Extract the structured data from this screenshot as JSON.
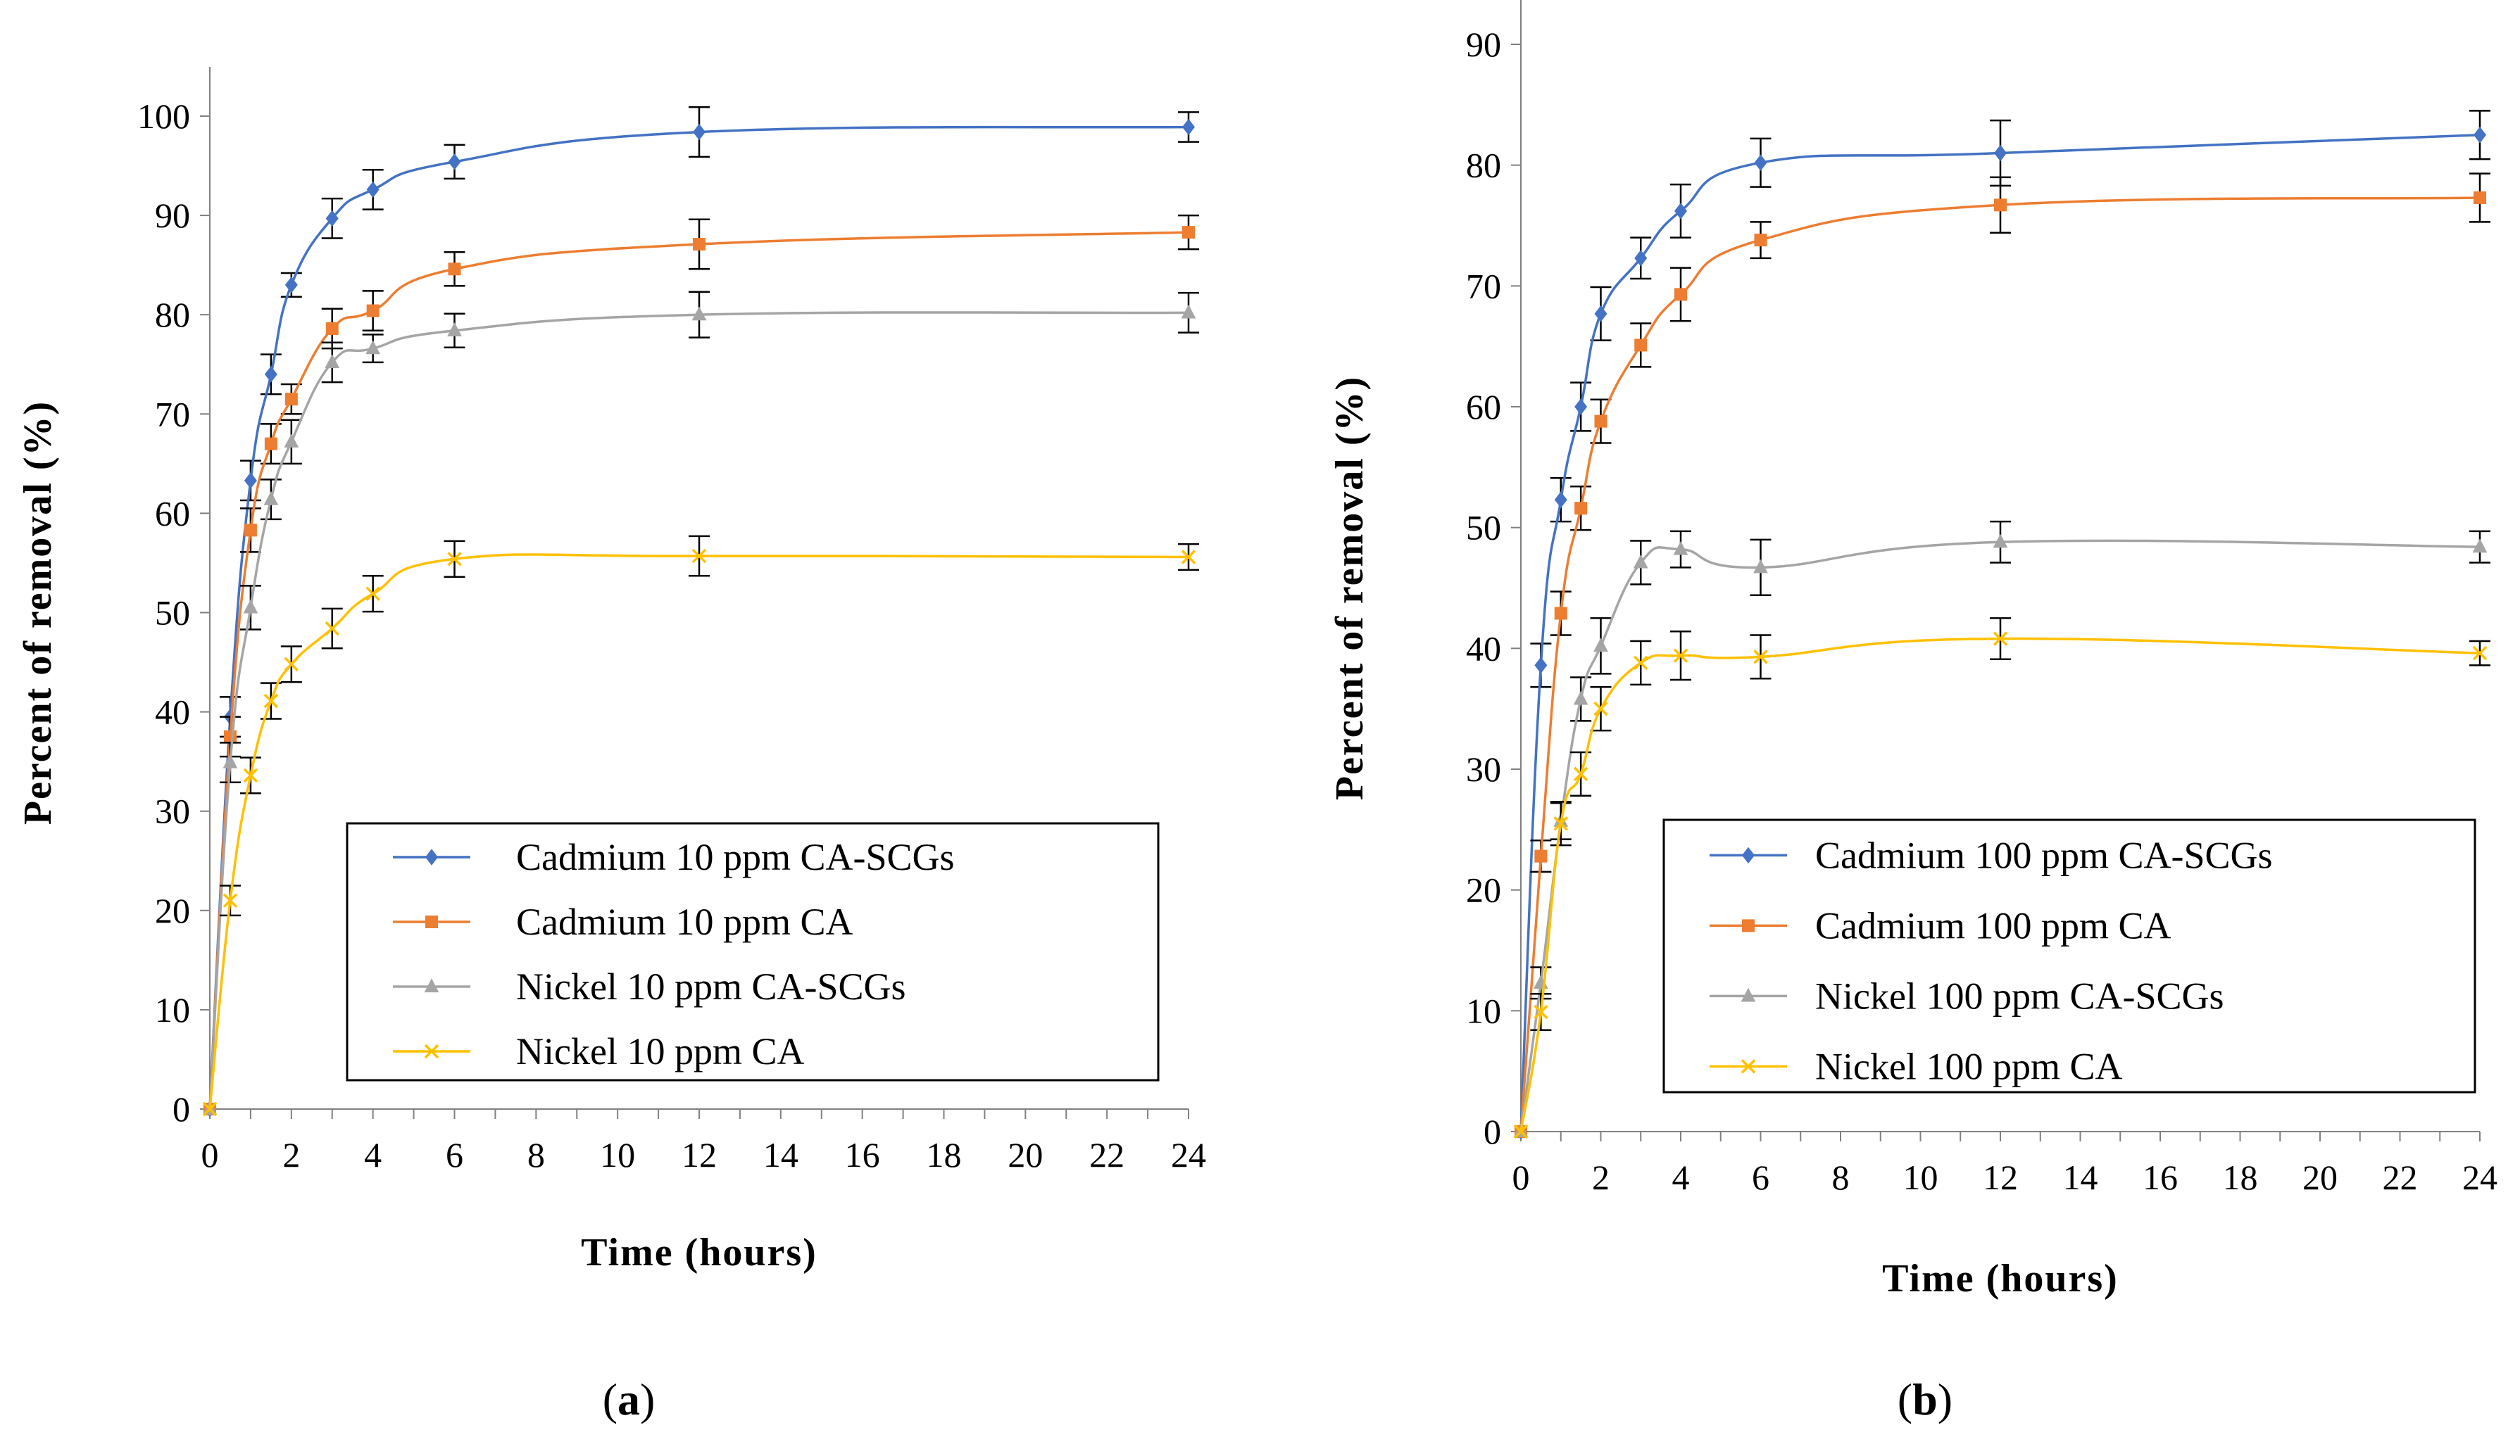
{
  "colors": {
    "cd_scg": "#4472C4",
    "cd_ca": "#ED7D31",
    "ni_scg": "#A5A5A5",
    "ni_ca": "#FFC000",
    "axis": "#808080",
    "errorbar": "#000000"
  },
  "chart_data": [
    {
      "type": "line",
      "panel": "a",
      "panel_label_open": "(",
      "panel_label_letter": "a",
      "panel_label_close": ")",
      "xlabel": "Time  (hours)",
      "ylabel": "Percent  of  removal  (%)",
      "xlim": [
        0,
        24
      ],
      "ylim": [
        0,
        100
      ],
      "xticks": [
        0,
        2,
        4,
        6,
        8,
        10,
        12,
        14,
        16,
        18,
        20,
        22,
        24
      ],
      "yticks": [
        0,
        10,
        20,
        30,
        40,
        50,
        60,
        70,
        80,
        90,
        100
      ],
      "grid": false,
      "legend_position": "bottom-right",
      "x": [
        0,
        0.5,
        1,
        1.5,
        2,
        3,
        4,
        6,
        12,
        24
      ],
      "series": [
        {
          "name": "Cadmium 10 ppm CA-SCGs",
          "marker": "diamond",
          "color_key": "cd_scg",
          "values": [
            0,
            39.5,
            63.3,
            74,
            83,
            89.7,
            92.6,
            95.4,
            98.4,
            98.9
          ],
          "errors": [
            0,
            2,
            2,
            2,
            1.2,
            2,
            2,
            1.7,
            2.5,
            1.5
          ]
        },
        {
          "name": "Cadmium 10 ppm CA",
          "marker": "square",
          "color_key": "cd_ca",
          "values": [
            0,
            37.5,
            58.3,
            67,
            71.5,
            78.6,
            80.4,
            84.6,
            87.1,
            88.3
          ],
          "errors": [
            0,
            2,
            2.2,
            2,
            1.5,
            2,
            2,
            1.7,
            2.5,
            1.7
          ]
        },
        {
          "name": "Nickel 10 ppm CA-SCGs",
          "marker": "triangle",
          "color_key": "ni_scg",
          "values": [
            0,
            34.9,
            50.5,
            61.4,
            67.2,
            75.2,
            76.6,
            78.4,
            80,
            80.2
          ],
          "errors": [
            0,
            2,
            2.2,
            2,
            2.2,
            2,
            1.4,
            1.7,
            2.3,
            2
          ]
        },
        {
          "name": "Nickel 10 ppm CA",
          "marker": "x",
          "color_key": "ni_ca",
          "values": [
            0,
            21,
            33.6,
            41.1,
            44.8,
            48.4,
            51.9,
            55.4,
            55.7,
            55.6
          ],
          "errors": [
            0,
            1.5,
            1.8,
            1.8,
            1.8,
            2,
            1.8,
            1.8,
            2,
            1.3
          ]
        }
      ]
    },
    {
      "type": "line",
      "panel": "b",
      "panel_label_open": "(",
      "panel_label_letter": "b",
      "panel_label_close": ")",
      "xlabel": "Time  (hours)",
      "ylabel": "Percent  of  removal  (%)",
      "xlim": [
        0,
        24
      ],
      "ylim": [
        0,
        90
      ],
      "xticks": [
        0,
        2,
        4,
        6,
        8,
        10,
        12,
        14,
        16,
        18,
        20,
        22,
        24
      ],
      "yticks": [
        0,
        10,
        20,
        30,
        40,
        50,
        60,
        70,
        80,
        90
      ],
      "grid": false,
      "legend_position": "bottom-right",
      "x": [
        0,
        0.5,
        1,
        1.5,
        2,
        3,
        4,
        6,
        12,
        24
      ],
      "series": [
        {
          "name": "Cadmium 100 ppm CA-SCGs",
          "marker": "diamond",
          "color_key": "cd_scg",
          "values": [
            0,
            38.6,
            52.3,
            60,
            67.7,
            72.3,
            76.2,
            80.2,
            81,
            82.5
          ],
          "errors": [
            0,
            1.8,
            1.8,
            2,
            2.2,
            1.7,
            2.2,
            2,
            2.7,
            2
          ]
        },
        {
          "name": "Cadmium 100 ppm CA",
          "marker": "square",
          "color_key": "cd_ca",
          "values": [
            0,
            22.8,
            42.9,
            51.6,
            58.8,
            65.1,
            69.3,
            73.8,
            76.7,
            77.3
          ],
          "errors": [
            0,
            1.3,
            1.8,
            1.8,
            1.8,
            1.8,
            2.2,
            1.5,
            2.3,
            2
          ]
        },
        {
          "name": "Nickel 100 ppm CA-SCGs",
          "marker": "triangle",
          "color_key": "ni_scg",
          "values": [
            0,
            12.3,
            25.7,
            35.8,
            40.2,
            47.1,
            48.2,
            46.7,
            48.8,
            48.4
          ],
          "errors": [
            0,
            1.3,
            1.5,
            1.8,
            2.3,
            1.8,
            1.5,
            2.3,
            1.7,
            1.3
          ]
        },
        {
          "name": "Nickel 100 ppm CA",
          "marker": "x",
          "color_key": "ni_ca",
          "values": [
            0,
            9.9,
            25.5,
            29.6,
            35,
            38.8,
            39.4,
            39.3,
            40.8,
            39.6
          ],
          "errors": [
            0,
            1.5,
            1.8,
            1.8,
            1.8,
            1.8,
            2,
            1.8,
            1.7,
            1
          ]
        }
      ]
    }
  ]
}
